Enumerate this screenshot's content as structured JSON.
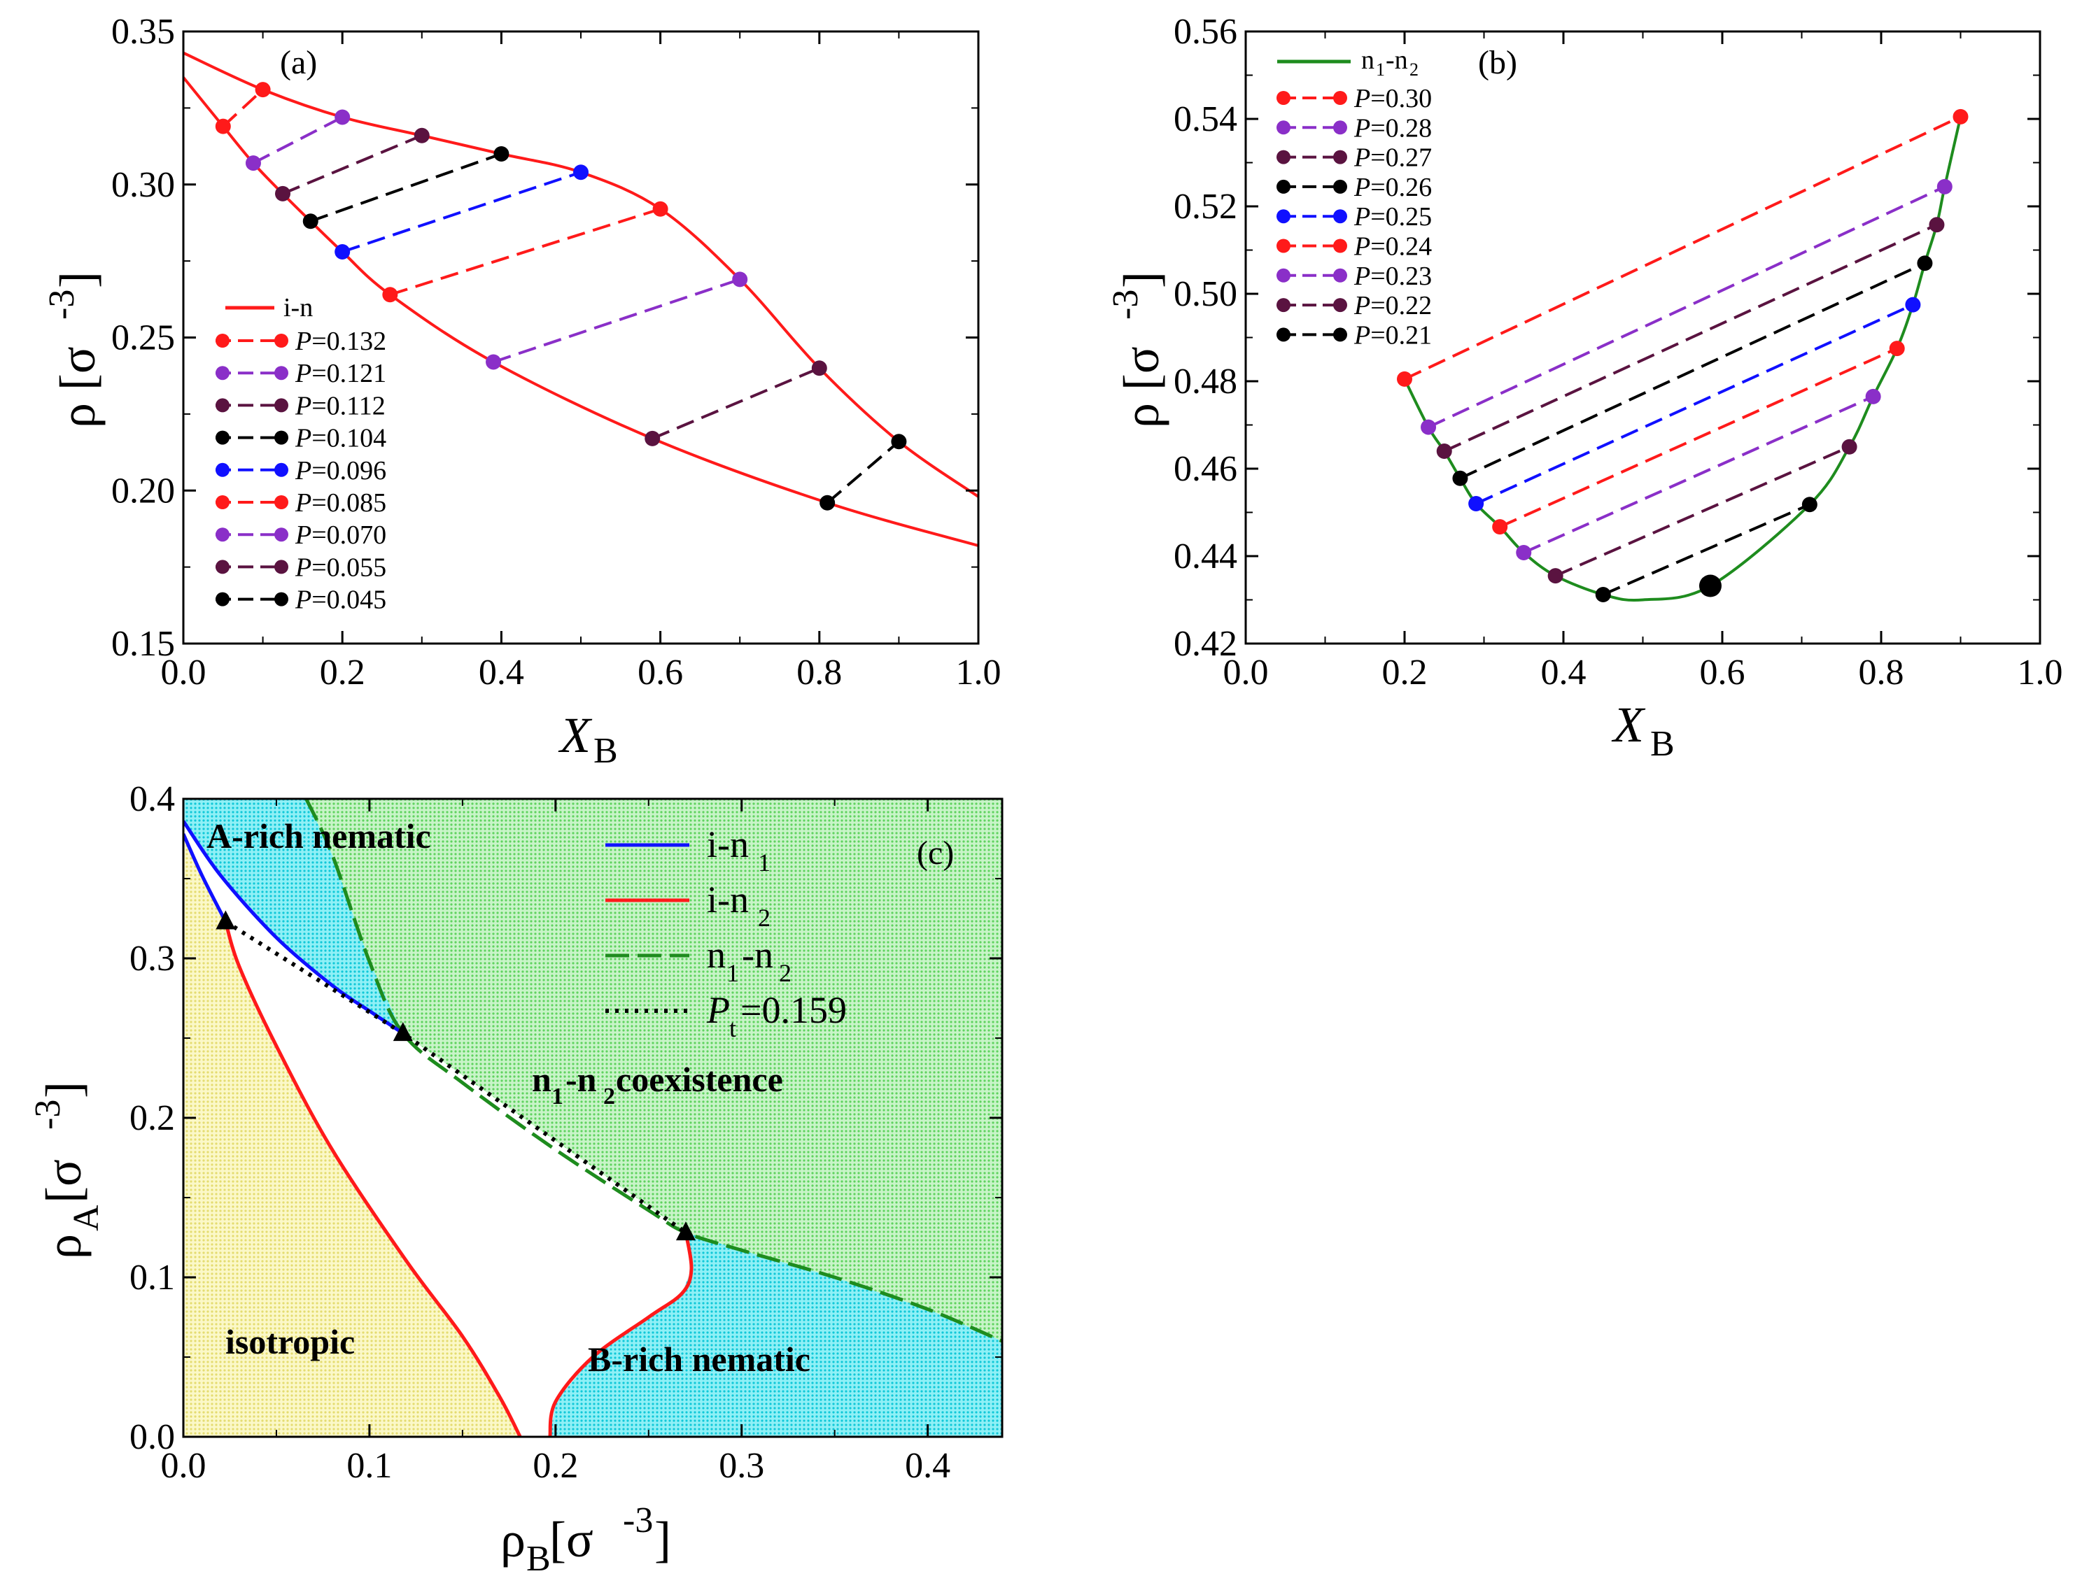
{
  "colors": {
    "red": "#ff1a1a",
    "purple": "#8a2fc8",
    "maroon": "#5a1340",
    "black": "#000000",
    "blue": "#1010ff",
    "green": "#1e8c1e",
    "green_fill": "#9ee89e",
    "cyan_fill": "#2fe0ee",
    "yellow_fill": "#f5f0a0"
  },
  "chart_data": [
    {
      "id": "a",
      "type": "line",
      "panel_label": "(a)",
      "xlabel": "X",
      "xlabel_sub": "B",
      "ylabel": "ρ [σ",
      "ylabel_sup": "-3",
      "ylabel_end": "]",
      "xlim": [
        0.0,
        1.0
      ],
      "ylim": [
        0.15,
        0.35
      ],
      "xticks": [
        "0.0",
        "0.2",
        "0.4",
        "0.6",
        "0.8",
        "1.0"
      ],
      "yticks": [
        "0.15",
        "0.20",
        "0.25",
        "0.30",
        "0.35"
      ],
      "boundary_name": "i-n",
      "boundary_upper": [
        [
          0,
          0.343
        ],
        [
          0.1,
          0.331
        ],
        [
          0.2,
          0.322
        ],
        [
          0.3,
          0.316
        ],
        [
          0.4,
          0.31
        ],
        [
          0.5,
          0.304
        ],
        [
          0.6,
          0.292
        ],
        [
          0.7,
          0.269
        ],
        [
          0.8,
          0.24
        ],
        [
          0.9,
          0.216
        ],
        [
          1.0,
          0.198
        ]
      ],
      "boundary_lower": [
        [
          0,
          0.335
        ],
        [
          0.05,
          0.319
        ],
        [
          0.088,
          0.307
        ],
        [
          0.125,
          0.297
        ],
        [
          0.16,
          0.288
        ],
        [
          0.2,
          0.278
        ],
        [
          0.26,
          0.264
        ],
        [
          0.39,
          0.242
        ],
        [
          0.59,
          0.217
        ],
        [
          0.81,
          0.196
        ],
        [
          1.0,
          0.182
        ]
      ],
      "tie_lines": [
        {
          "label": "P=0.132",
          "P": "0.132",
          "color": "red",
          "p1": [
            0.05,
            0.319
          ],
          "p2": [
            0.1,
            0.331
          ]
        },
        {
          "label": "P=0.121",
          "P": "0.121",
          "color": "purple",
          "p1": [
            0.088,
            0.307
          ],
          "p2": [
            0.2,
            0.322
          ]
        },
        {
          "label": "P=0.112",
          "P": "0.112",
          "color": "maroon",
          "p1": [
            0.125,
            0.297
          ],
          "p2": [
            0.3,
            0.316
          ]
        },
        {
          "label": "P=0.104",
          "P": "0.104",
          "color": "black",
          "p1": [
            0.16,
            0.288
          ],
          "p2": [
            0.4,
            0.31
          ]
        },
        {
          "label": "P=0.096",
          "P": "0.096",
          "color": "blue",
          "p1": [
            0.2,
            0.278
          ],
          "p2": [
            0.5,
            0.304
          ]
        },
        {
          "label": "P=0.085",
          "P": "0.085",
          "color": "red",
          "p1": [
            0.26,
            0.264
          ],
          "p2": [
            0.6,
            0.292
          ]
        },
        {
          "label": "P=0.070",
          "P": "0.070",
          "color": "purple",
          "p1": [
            0.39,
            0.242
          ],
          "p2": [
            0.7,
            0.269
          ]
        },
        {
          "label": "P=0.055",
          "P": "0.055",
          "color": "maroon",
          "p1": [
            0.59,
            0.217
          ],
          "p2": [
            0.8,
            0.24
          ]
        },
        {
          "label": "P=0.045",
          "P": "0.045",
          "color": "black",
          "p1": [
            0.81,
            0.196
          ],
          "p2": [
            0.9,
            0.216
          ]
        }
      ]
    },
    {
      "id": "b",
      "type": "line",
      "panel_label": "(b)",
      "xlabel": "X",
      "xlabel_sub": "B",
      "ylabel": "ρ [σ",
      "ylabel_sup": "-3",
      "ylabel_end": "]",
      "xlim": [
        0.0,
        1.0
      ],
      "ylim": [
        0.42,
        0.56
      ],
      "xticks": [
        "0.0",
        "0.2",
        "0.4",
        "0.6",
        "0.8",
        "1.0"
      ],
      "yticks": [
        "0.42",
        "0.44",
        "0.46",
        "0.48",
        "0.50",
        "0.52",
        "0.54",
        "0.56"
      ],
      "boundary_name": "n",
      "boundary_name_sub1": "1",
      "boundary_name_mid": "-n",
      "boundary_name_sub2": "2",
      "boundary": [
        [
          0.2,
          0.4805
        ],
        [
          0.23,
          0.4695
        ],
        [
          0.25,
          0.464
        ],
        [
          0.27,
          0.4578
        ],
        [
          0.29,
          0.452
        ],
        [
          0.32,
          0.4467
        ],
        [
          0.35,
          0.4408
        ],
        [
          0.39,
          0.4355
        ],
        [
          0.45,
          0.4312
        ],
        [
          0.5,
          0.43
        ],
        [
          0.585,
          0.4332
        ],
        [
          0.71,
          0.4518
        ],
        [
          0.76,
          0.465
        ],
        [
          0.79,
          0.4765
        ],
        [
          0.82,
          0.4875
        ],
        [
          0.84,
          0.4975
        ],
        [
          0.855,
          0.507
        ],
        [
          0.87,
          0.5158
        ],
        [
          0.88,
          0.5245
        ],
        [
          0.9,
          0.5405
        ]
      ],
      "critical_point": [
        0.585,
        0.4332
      ],
      "tie_lines": [
        {
          "label": "P=0.30",
          "P": "0.30",
          "color": "red",
          "p1": [
            0.2,
            0.4805
          ],
          "p2": [
            0.9,
            0.5405
          ]
        },
        {
          "label": "P=0.28",
          "P": "0.28",
          "color": "purple",
          "p1": [
            0.23,
            0.4695
          ],
          "p2": [
            0.88,
            0.5245
          ]
        },
        {
          "label": "P=0.27",
          "P": "0.27",
          "color": "maroon",
          "p1": [
            0.25,
            0.464
          ],
          "p2": [
            0.87,
            0.5158
          ]
        },
        {
          "label": "P=0.26",
          "P": "0.26",
          "color": "black",
          "p1": [
            0.27,
            0.4578
          ],
          "p2": [
            0.855,
            0.507
          ]
        },
        {
          "label": "P=0.25",
          "P": "0.25",
          "color": "blue",
          "p1": [
            0.29,
            0.452
          ],
          "p2": [
            0.84,
            0.4975
          ]
        },
        {
          "label": "P=0.24",
          "P": "0.24",
          "color": "red",
          "p1": [
            0.32,
            0.4467
          ],
          "p2": [
            0.82,
            0.4875
          ]
        },
        {
          "label": "P=0.23",
          "P": "0.23",
          "color": "purple",
          "p1": [
            0.35,
            0.4408
          ],
          "p2": [
            0.79,
            0.4765
          ]
        },
        {
          "label": "P=0.22",
          "P": "0.22",
          "color": "maroon",
          "p1": [
            0.39,
            0.4355
          ],
          "p2": [
            0.76,
            0.465
          ]
        },
        {
          "label": "P=0.21",
          "P": "0.21",
          "color": "black",
          "p1": [
            0.45,
            0.4312
          ],
          "p2": [
            0.71,
            0.4518
          ]
        }
      ]
    },
    {
      "id": "c",
      "type": "line",
      "panel_label": "(c)",
      "xlabel": "ρ",
      "xlabel_sub": "B",
      "xlabel_end": " [σ",
      "xlabel_sup": "-3",
      "xlabel_close": "]",
      "ylabel": "ρ",
      "ylabel_sub": "A",
      "ylabel_end": " [σ",
      "ylabel_sup": "-3",
      "ylabel_close": "]",
      "xlim": [
        0.0,
        0.44
      ],
      "ylim": [
        0.0,
        0.4
      ],
      "xticks": [
        "0.0",
        "0.1",
        "0.2",
        "0.3",
        "0.4"
      ],
      "yticks": [
        "0.0",
        "0.1",
        "0.2",
        "0.3",
        "0.4"
      ],
      "triple_points": [
        [
          0.0227,
          0.323
        ],
        [
          0.118,
          0.253
        ],
        [
          0.27,
          0.128
        ]
      ],
      "series": [
        {
          "name": "i-n1",
          "label": "i-n",
          "label_sub": "1",
          "color": "blue",
          "style": "solid",
          "points": [
            [
              0,
              0.386
            ],
            [
              0.02,
              0.352
            ],
            [
              0.05,
              0.313
            ],
            [
              0.08,
              0.283
            ],
            [
              0.1,
              0.267
            ],
            [
              0.118,
              0.253
            ]
          ]
        },
        {
          "name": "i-n1-branch",
          "color": "blue",
          "style": "solid",
          "points": [
            [
              0,
              0.378
            ],
            [
              0.01,
              0.352
            ],
            [
              0.0227,
              0.323
            ]
          ]
        },
        {
          "name": "i-n2",
          "label": "i-n",
          "label_sub": "2",
          "color": "red",
          "style": "solid",
          "points": [
            [
              0.0227,
              0.323
            ],
            [
              0.03,
              0.295
            ],
            [
              0.05,
              0.245
            ],
            [
              0.08,
              0.18
            ],
            [
              0.12,
              0.11
            ],
            [
              0.15,
              0.063
            ],
            [
              0.17,
              0.025
            ],
            [
              0.181,
              0.0
            ]
          ]
        },
        {
          "name": "i-n2-branch",
          "color": "red",
          "style": "solid",
          "points": [
            [
              0.197,
              0.0
            ],
            [
              0.2,
              0.022
            ],
            [
              0.22,
              0.05
            ],
            [
              0.25,
              0.075
            ],
            [
              0.268,
              0.09
            ],
            [
              0.273,
              0.105
            ],
            [
              0.27,
              0.128
            ]
          ]
        },
        {
          "name": "n1-n2",
          "label": "n",
          "label_sub": "1",
          "label_mid": "-n",
          "label_sub2": "2",
          "color": "green",
          "style": "dashed",
          "points": [
            [
              0.066,
              0.4
            ],
            [
              0.08,
              0.365
            ],
            [
              0.1,
              0.298
            ],
            [
              0.118,
              0.253
            ],
            [
              0.15,
              0.222
            ],
            [
              0.2,
              0.18
            ],
            [
              0.25,
              0.142
            ],
            [
              0.27,
              0.128
            ],
            [
              0.3,
              0.117
            ],
            [
              0.35,
              0.1
            ],
            [
              0.4,
              0.08
            ],
            [
              0.44,
              0.06
            ]
          ]
        },
        {
          "name": "Pt",
          "label": "P",
          "label_sub": "t",
          "label_end": "=0.159",
          "color": "black",
          "style": "dotted",
          "points": [
            [
              0.0227,
              0.323
            ],
            [
              0.118,
              0.253
            ],
            [
              0.27,
              0.128
            ]
          ]
        }
      ],
      "regions": [
        {
          "name": "A-rich nematic",
          "label": "A-rich nematic"
        },
        {
          "name": "n1-n2 coexistence",
          "label": "n",
          "label_sub": "1",
          "label_end": "-n",
          "label_sub2": "2",
          "label_tail": " coexistence"
        },
        {
          "name": "isotropic",
          "label": "isotropic"
        },
        {
          "name": "B-rich nematic",
          "label": "B-rich nematic"
        }
      ]
    }
  ]
}
